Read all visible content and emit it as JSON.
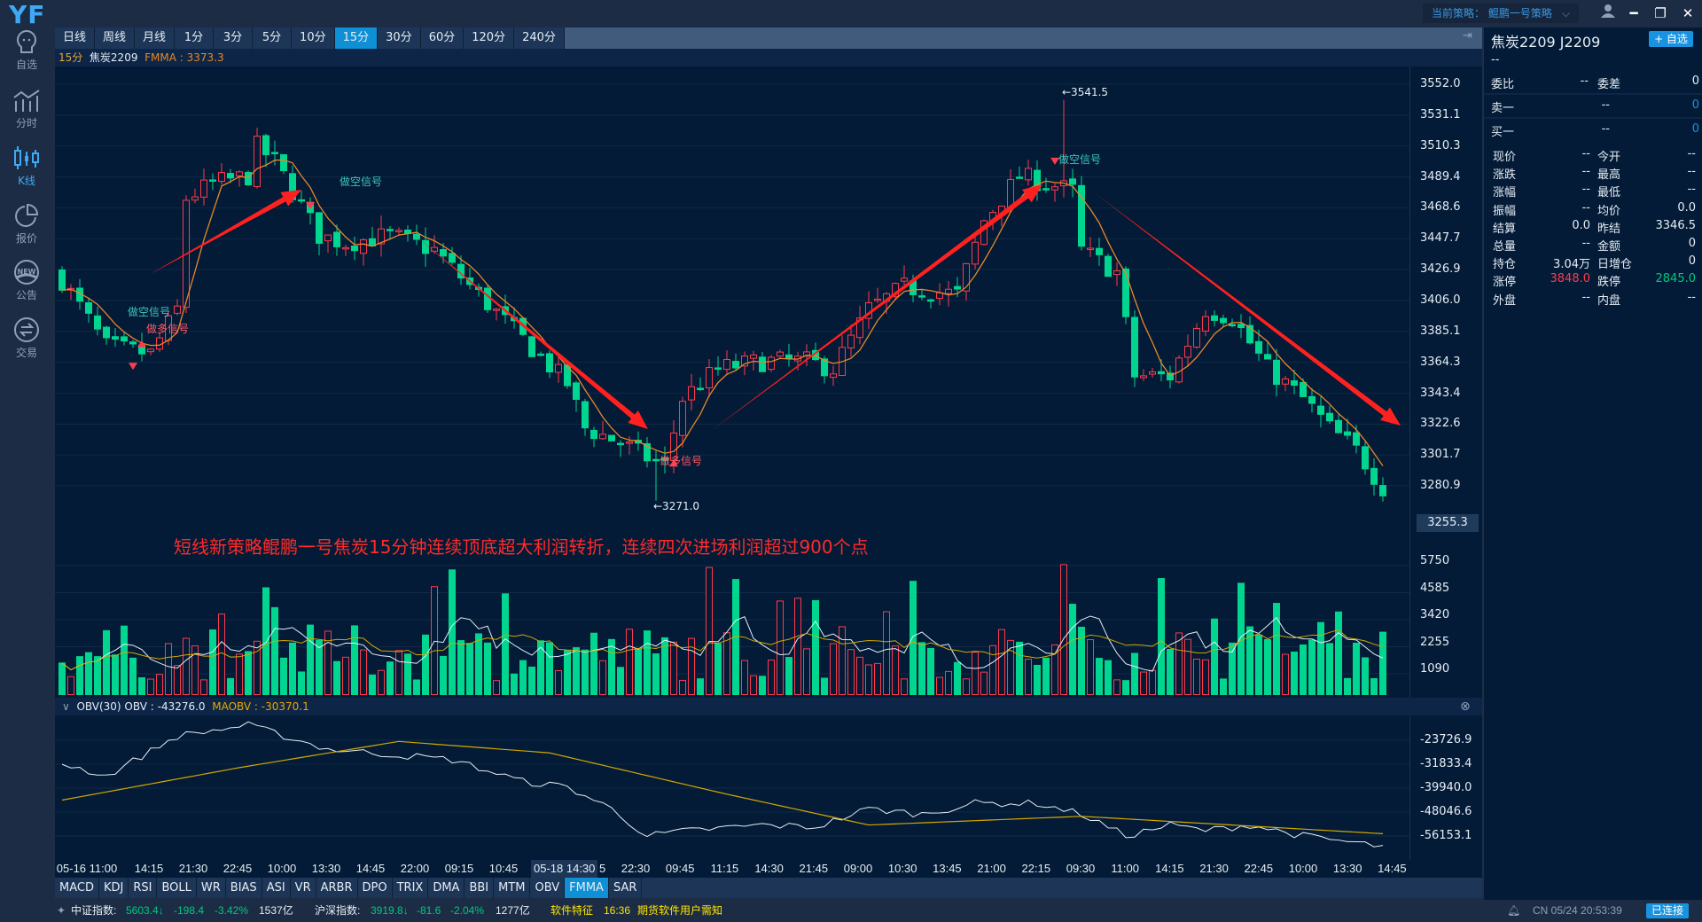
{
  "app": {
    "logo": "YF",
    "strategy_label": "当前策略：",
    "strategy_value": "鲲鹏一号策略"
  },
  "sidebar": {
    "items": [
      {
        "label": "自选",
        "icon": "watchlist-icon"
      },
      {
        "label": "分时",
        "icon": "timeshare-icon"
      },
      {
        "label": "K线",
        "icon": "candlestick-icon",
        "active": true
      },
      {
        "label": "报价",
        "icon": "pie-icon"
      },
      {
        "label": "公告",
        "icon": "new-badge-icon"
      },
      {
        "label": "交易",
        "icon": "exchange-icon"
      }
    ]
  },
  "period_tabs": [
    "日线",
    "周线",
    "月线",
    "1分",
    "3分",
    "5分",
    "10分",
    "15分",
    "30分",
    "60分",
    "120分",
    "240分"
  ],
  "active_period": "15分",
  "info": {
    "period": "15分",
    "symbol": "焦炭2209",
    "fmma_label": "FMMA : 3373.3"
  },
  "price_axis": [
    "3552.0",
    "3531.1",
    "3510.3",
    "3489.4",
    "3468.6",
    "3447.7",
    "3426.9",
    "3406.0",
    "3385.1",
    "3364.3",
    "3343.4",
    "3322.6",
    "3301.7",
    "3280.9"
  ],
  "current_price": "3255.3",
  "volume_axis": [
    "5750",
    "4585",
    "3420",
    "2255",
    "1090"
  ],
  "obv": {
    "title": "OBV(30)",
    "obv_label": "OBV : -43276.0",
    "maobv_label": "MAOBV : -30370.1",
    "axis": [
      "-23726.9",
      "-31833.4",
      "-39940.0",
      "-48046.6",
      "-56153.1"
    ]
  },
  "annotations": {
    "short_signal": "做空信号",
    "long_signal": "做多信号",
    "high": "←3541.5",
    "low": "←3271.0",
    "caption": "短线新策略鲲鹏一号焦炭15分钟连续顶底超大利润转折，连续四次进场利润超过900个点"
  },
  "time_axis": [
    "05-16 11:00",
    "14:15",
    "21:30",
    "22:45",
    "10:00",
    "13:30",
    "14:45",
    "22:00",
    "09:15",
    "10:45",
    "5",
    "22:30",
    "09:45",
    "11:15",
    "14:30",
    "21:45",
    "09:00",
    "10:30",
    "13:45",
    "21:00",
    "22:15",
    "09:30",
    "11:00",
    "14:15",
    "21:30",
    "22:45",
    "10:00",
    "13:30",
    "14:45"
  ],
  "time_highlight": "05-18 14:30",
  "indicator_tabs": [
    "MACD",
    "KDJ",
    "RSI",
    "BOLL",
    "WR",
    "BIAS",
    "ASI",
    "VR",
    "ARBR",
    "DPO",
    "TRIX",
    "DMA",
    "BBI",
    "MTM",
    "OBV",
    "FMMA",
    "SAR"
  ],
  "active_indicator": "FMMA",
  "quote": {
    "title": "焦炭2209  J2209",
    "add_label": "+ 自选",
    "dash": "--",
    "weibi": {
      "l": "委比",
      "v": "--",
      "l2": "委差",
      "v2": "0"
    },
    "sell1": {
      "l": "卖一",
      "v": "--",
      "v2": "0"
    },
    "buy1": {
      "l": "买一",
      "v": "--",
      "v2": "0"
    },
    "rows": [
      {
        "l": "现价",
        "v": "--",
        "l2": "今开",
        "v2": "--"
      },
      {
        "l": "涨跌",
        "v": "--",
        "l2": "最高",
        "v2": "--"
      },
      {
        "l": "涨幅",
        "v": "--",
        "l2": "最低",
        "v2": "--"
      },
      {
        "l": "振幅",
        "v": "--",
        "l2": "均价",
        "v2": "0.0"
      },
      {
        "l": "结算",
        "v": "0.0",
        "l2": "昨结",
        "v2": "3346.5"
      },
      {
        "l": "总量",
        "v": "--",
        "l2": "金额",
        "v2": "0"
      },
      {
        "l": "持仓",
        "v": "3.04万",
        "l2": "日增仓",
        "v2": "0"
      },
      {
        "l": "涨停",
        "v": "3848.0",
        "l2": "跌停",
        "v2": "2845.0"
      },
      {
        "l": "外盘",
        "v": "--",
        "l2": "内盘",
        "v2": "--"
      }
    ]
  },
  "status": {
    "idx1_label": "中证指数:",
    "idx1_val": "5603.4↓",
    "idx1_chg": "-198.4",
    "idx1_pct": "-3.42%",
    "idx1_amt": "1537亿",
    "idx2_label": "沪深指数:",
    "idx2_val": "3919.8↓",
    "idx2_chg": "-81.6",
    "idx2_pct": "-2.04%",
    "idx2_amt": "1277亿",
    "news1": "软件特征",
    "news_time": "16:36",
    "news2": "期货软件用户需知",
    "clock": "CN 05/24 20:53:39",
    "conn": "已连接"
  },
  "colors": {
    "up": "#ff3a4c",
    "down": "#00d68f",
    "fmma": "#e8862a",
    "accent": "#0e8fd6",
    "obv": "#e6edf5",
    "maobv": "#d4a800"
  },
  "chart_data": {
    "type": "candlestick",
    "symbol": "焦炭2209",
    "period": "15分",
    "ylim": [
      3259.0,
      3552.0
    ],
    "approx_close_path": [
      [
        0,
        3420
      ],
      [
        5,
        3375
      ],
      [
        10,
        3370
      ],
      [
        13,
        3400
      ],
      [
        14,
        3475
      ],
      [
        17,
        3485
      ],
      [
        21,
        3490
      ],
      [
        22,
        3510
      ],
      [
        24,
        3500
      ],
      [
        26,
        3480
      ],
      [
        29,
        3450
      ],
      [
        32,
        3445
      ],
      [
        37,
        3450
      ],
      [
        42,
        3440
      ],
      [
        47,
        3410
      ],
      [
        52,
        3380
      ],
      [
        57,
        3350
      ],
      [
        59,
        3320
      ],
      [
        63,
        3310
      ],
      [
        66,
        3300
      ],
      [
        68,
        3295
      ],
      [
        70,
        3340
      ],
      [
        74,
        3360
      ],
      [
        79,
        3365
      ],
      [
        84,
        3365
      ],
      [
        87,
        3360
      ],
      [
        91,
        3400
      ],
      [
        95,
        3415
      ],
      [
        101,
        3410
      ],
      [
        104,
        3460
      ],
      [
        108,
        3490
      ],
      [
        111,
        3485
      ],
      [
        114,
        3480
      ],
      [
        115,
        3440
      ],
      [
        119,
        3425
      ],
      [
        121,
        3355
      ],
      [
        125,
        3355
      ],
      [
        129,
        3400
      ],
      [
        132,
        3395
      ],
      [
        136,
        3360
      ],
      [
        140,
        3340
      ],
      [
        143,
        3320
      ],
      [
        146,
        3305
      ],
      [
        149,
        3280
      ]
    ],
    "high": 3541.5,
    "low": 3271.0,
    "volume_ylim": [
      0,
      6500
    ],
    "obv_path": [
      [
        0,
        -31475
      ],
      [
        5,
        -35890
      ],
      [
        13,
        -22285
      ],
      [
        21,
        -18620
      ],
      [
        30,
        -26730
      ],
      [
        37,
        -28530
      ],
      [
        44,
        -30330
      ],
      [
        52,
        -37720
      ],
      [
        57,
        -39580
      ],
      [
        62,
        -46940
      ],
      [
        66,
        -56130
      ],
      [
        71,
        -54270
      ],
      [
        79,
        -52430
      ],
      [
        85,
        -53150
      ],
      [
        91,
        -46940
      ],
      [
        97,
        -48770
      ],
      [
        103,
        -45080
      ],
      [
        110,
        -45080
      ],
      [
        115,
        -48770
      ],
      [
        120,
        -56130
      ],
      [
        125,
        -52430
      ],
      [
        129,
        -54270
      ],
      [
        134,
        -52430
      ],
      [
        140,
        -56130
      ],
      [
        149,
        -59790
      ]
    ],
    "maobv_path": [
      [
        0,
        -43990
      ],
      [
        20,
        -33000
      ],
      [
        38,
        -24120
      ],
      [
        55,
        -28000
      ],
      [
        75,
        -42000
      ],
      [
        91,
        -52430
      ],
      [
        115,
        -49490
      ],
      [
        149,
        -55380
      ]
    ]
  }
}
